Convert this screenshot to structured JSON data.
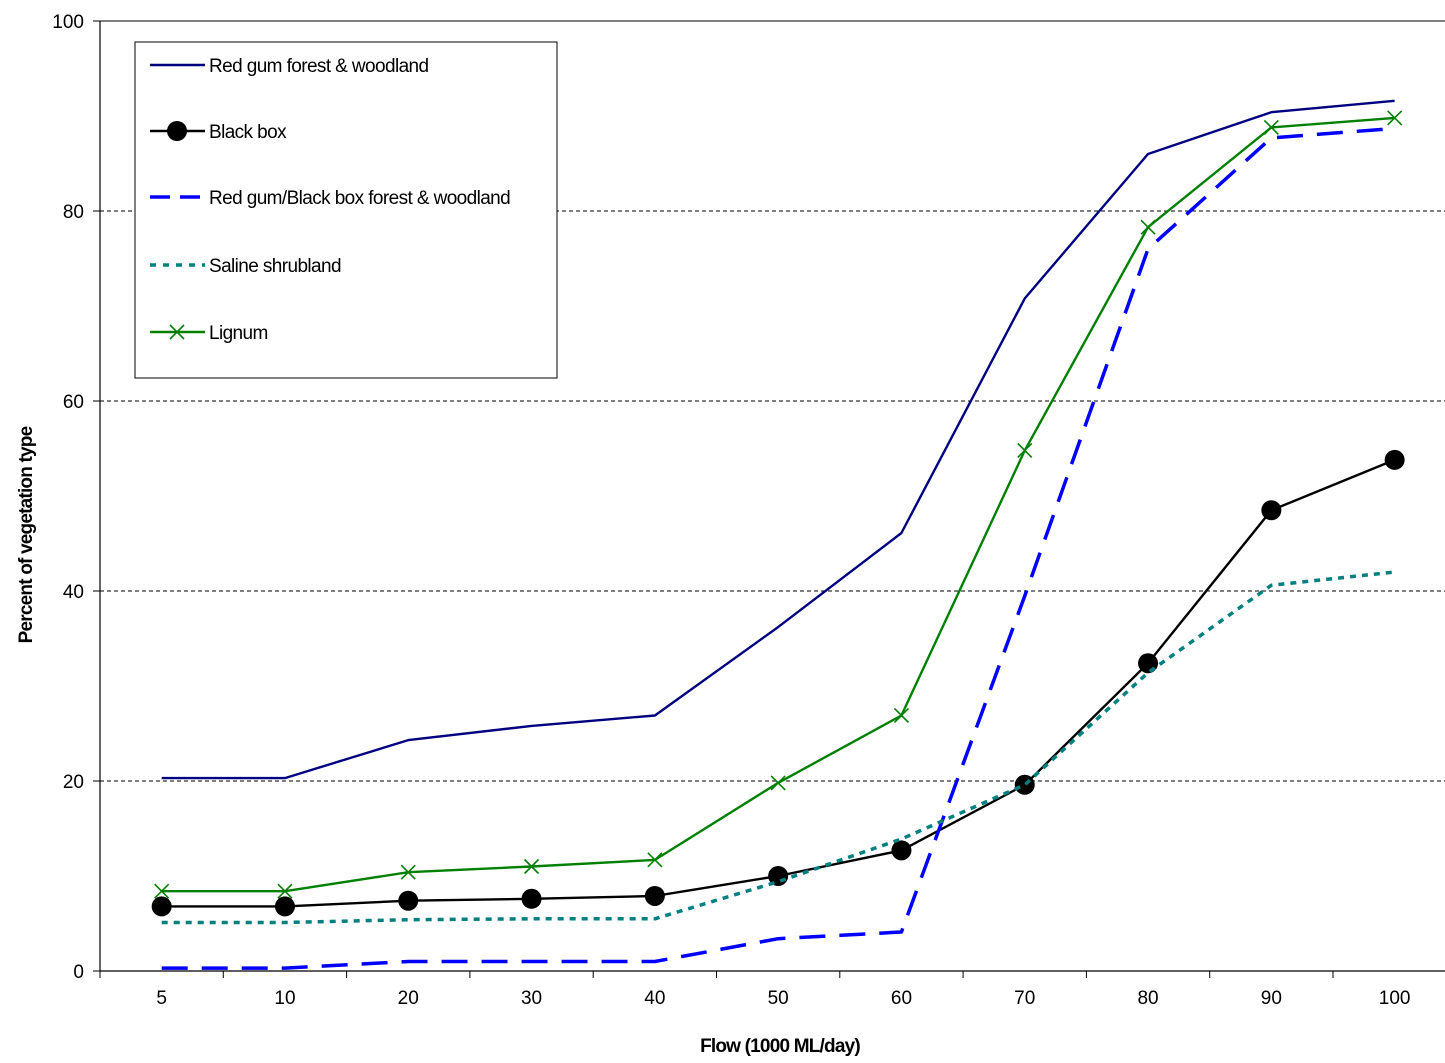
{
  "chart_data": {
    "type": "line",
    "title": "",
    "xlabel": "Flow (1000 ML/day)",
    "ylabel": "Percent of vegetation type",
    "categories": [
      "5",
      "10",
      "20",
      "30",
      "40",
      "50",
      "60",
      "70",
      "80",
      "90",
      "100"
    ],
    "ylim": [
      0,
      100
    ],
    "yticks": [
      "0",
      "20",
      "40",
      "60",
      "80",
      "100"
    ],
    "grid": "horizontal dashed",
    "legend_position": "top-left",
    "series": [
      {
        "name": "Red gum forest & woodland",
        "color": "#000080",
        "style": "solid",
        "marker": "none",
        "values": [
          20.3,
          20.3,
          24.3,
          25.8,
          26.9,
          36.2,
          46.1,
          70.8,
          86.0,
          90.4,
          91.6
        ]
      },
      {
        "name": "Black box",
        "color": "#000000",
        "style": "solid",
        "marker": "circle",
        "values": [
          6.8,
          6.8,
          7.4,
          7.6,
          7.9,
          10.0,
          12.7,
          19.6,
          32.4,
          48.5,
          53.8
        ]
      },
      {
        "name": "Red gum/Black box forest & woodland",
        "color": "#0000ff",
        "style": "dashed",
        "marker": "none",
        "values": [
          0.3,
          0.3,
          1.0,
          1.0,
          1.0,
          3.4,
          4.1,
          39.5,
          76.0,
          87.7,
          88.7
        ]
      },
      {
        "name": "Saline shrubland",
        "color": "#008080",
        "style": "dotted",
        "marker": "none",
        "values": [
          5.1,
          5.1,
          5.4,
          5.5,
          5.5,
          9.4,
          13.9,
          19.6,
          31.4,
          40.6,
          42.0
        ]
      },
      {
        "name": "Lignum",
        "color": "#008000",
        "style": "solid",
        "marker": "x",
        "values": [
          8.4,
          8.4,
          10.4,
          11.0,
          11.7,
          19.8,
          26.9,
          54.8,
          78.3,
          88.8,
          89.8
        ]
      }
    ]
  }
}
